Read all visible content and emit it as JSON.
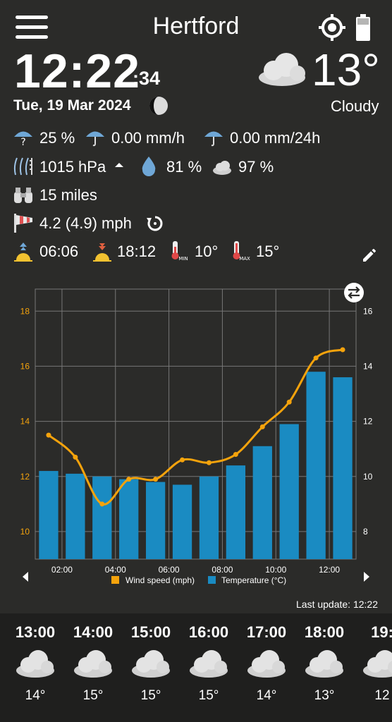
{
  "header": {
    "city": "Hertford",
    "time_main": "12:22",
    "time_seconds": ":34",
    "date": "Tue, 19 Mar 2024",
    "temperature": "13°",
    "condition": "Cloudy"
  },
  "stats": {
    "rain_probability": "25 %",
    "rain_rate": "0.00 mm/h",
    "rain_24h": "0.00 mm/24h",
    "pressure": "1015 hPa",
    "humidity": "81 %",
    "cloud_cover": "97 %",
    "visibility": "15 miles",
    "wind": "4.2 (4.9) mph",
    "sunrise": "06:06",
    "sunset": "18:12",
    "temp_min": "10°",
    "temp_max": "15°"
  },
  "colors": {
    "wind": "#f5a30c",
    "temperature": "#1a8bc2",
    "background": "#2b2b29"
  },
  "chart_data": {
    "type": "bar",
    "x_labels": [
      "02:00",
      "04:00",
      "06:00",
      "08:00",
      "10:00",
      "12:00"
    ],
    "y_left_ticks": [
      "10",
      "12",
      "14",
      "16",
      "18"
    ],
    "y_right_ticks": [
      "8",
      "10",
      "12",
      "14",
      "16"
    ],
    "y_left_range": [
      9,
      18.8
    ],
    "y_right_range": [
      7,
      16.8
    ],
    "series": [
      {
        "name": "Wind speed (mph)",
        "type": "line",
        "axis": "left",
        "values": [
          13.5,
          12.7,
          11.0,
          11.9,
          11.9,
          12.6,
          12.5,
          12.8,
          13.8,
          14.7,
          16.3,
          16.6
        ]
      },
      {
        "name": "Temperature (°C)",
        "type": "bar",
        "axis": "right",
        "values": [
          10.2,
          10.1,
          10.0,
          9.9,
          9.8,
          9.7,
          10.0,
          10.4,
          11.1,
          11.9,
          13.8,
          13.6
        ]
      }
    ]
  },
  "last_update": "Last update: 12:22",
  "hourly": [
    {
      "hour": "13:00",
      "temp": "14°"
    },
    {
      "hour": "14:00",
      "temp": "15°"
    },
    {
      "hour": "15:00",
      "temp": "15°"
    },
    {
      "hour": "16:00",
      "temp": "15°"
    },
    {
      "hour": "17:00",
      "temp": "14°"
    },
    {
      "hour": "18:00",
      "temp": "13°"
    },
    {
      "hour": "19:",
      "temp": "12"
    }
  ]
}
